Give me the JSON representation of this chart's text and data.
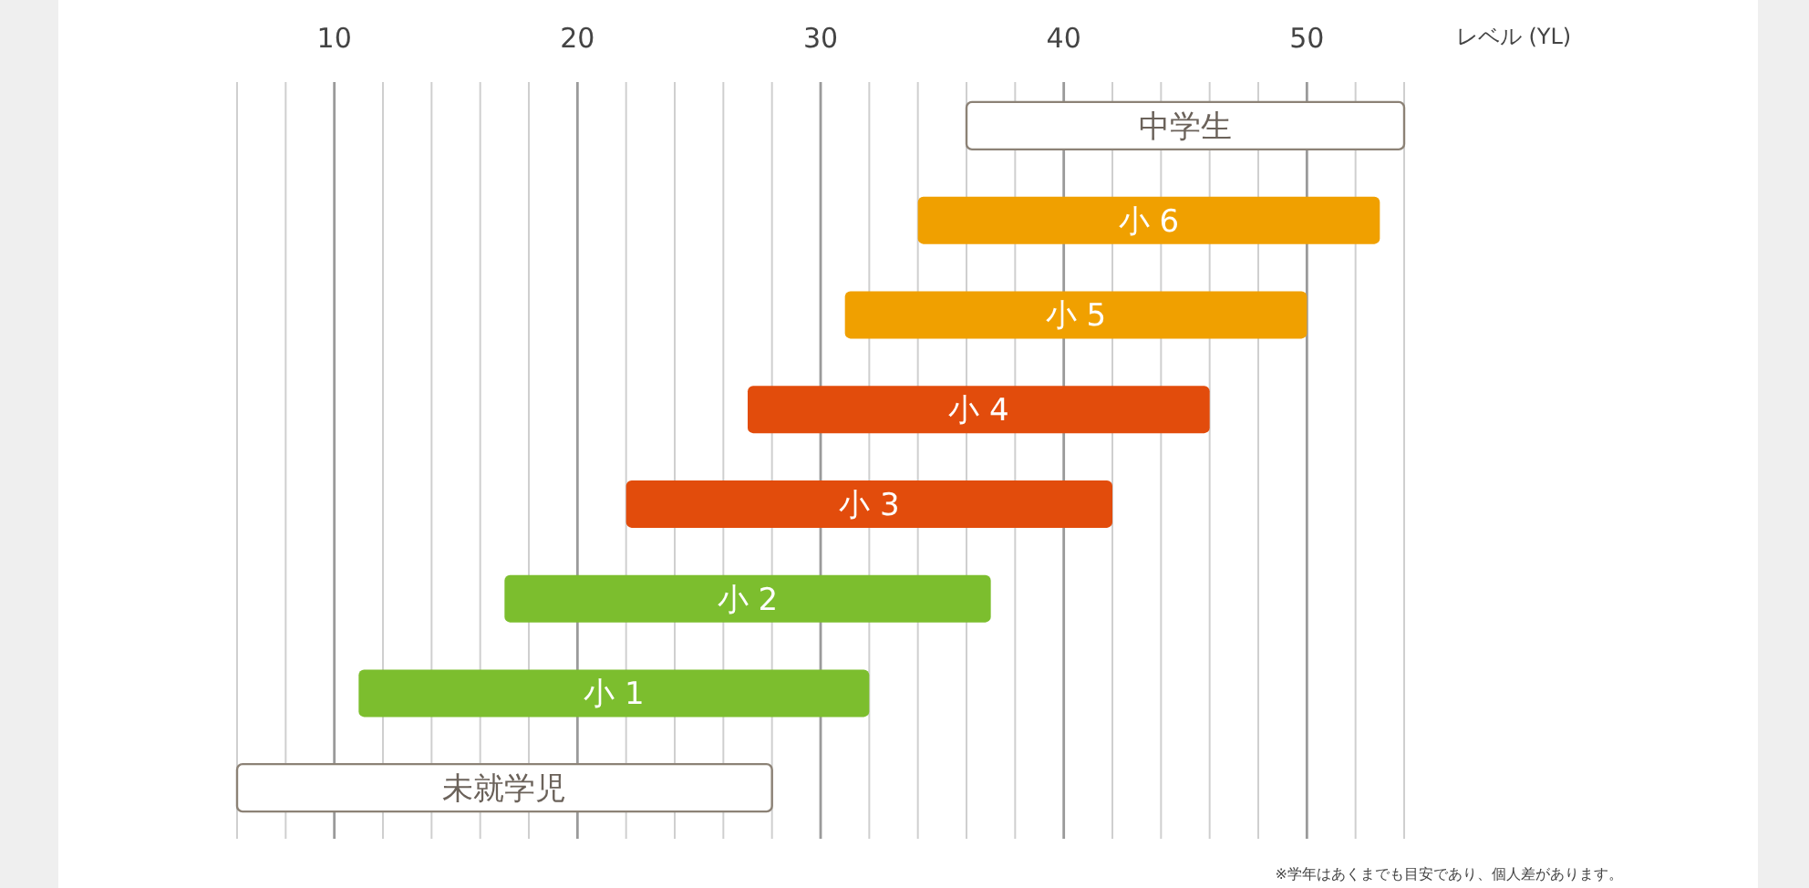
{
  "chart_data": {
    "type": "bar",
    "orientation": "horizontal",
    "xlabel": "レベル (YL)",
    "categories": [
      "中学生",
      "小 6",
      "小 5",
      "小 4",
      "小 3",
      "小 2",
      "小 1",
      "未就学児"
    ],
    "base": [
      36,
      34,
      31,
      27,
      22,
      17,
      11,
      6
    ],
    "values": [
      18,
      19,
      19,
      19,
      20,
      20,
      21,
      22
    ],
    "colors": [
      "#ffffff",
      "#f0a000",
      "#f0a000",
      "#e24c0c",
      "#e24c0c",
      "#7cbe2e",
      "#7cbe2e",
      "#ffffff"
    ],
    "xlim": [
      6,
      54
    ],
    "xticks": [
      {
        "value": 6,
        "label": null
      },
      {
        "value": 8,
        "label": null
      },
      10,
      {
        "value": 12,
        "label": null
      },
      {
        "value": 14,
        "label": null
      },
      {
        "value": 16,
        "label": null
      },
      {
        "value": 18,
        "label": null
      },
      20,
      {
        "value": 22,
        "label": null
      },
      {
        "value": 24,
        "label": null
      },
      {
        "value": 26,
        "label": null
      },
      {
        "value": 28,
        "label": null
      },
      30,
      {
        "value": 32,
        "label": null
      },
      {
        "value": 34,
        "label": null
      },
      {
        "value": 36,
        "label": null
      },
      {
        "value": 38,
        "label": null
      },
      40,
      {
        "value": 42,
        "label": null
      },
      {
        "value": 44,
        "label": null
      },
      {
        "value": 46,
        "label": null
      },
      {
        "value": 48,
        "label": null
      },
      50,
      {
        "value": 52,
        "label": null
      },
      {
        "value": 54,
        "label": null
      }
    ],
    "grid": "x",
    "annotations": [
      "※学年はあくまでも目安であり、個人差があります。"
    ]
  }
}
